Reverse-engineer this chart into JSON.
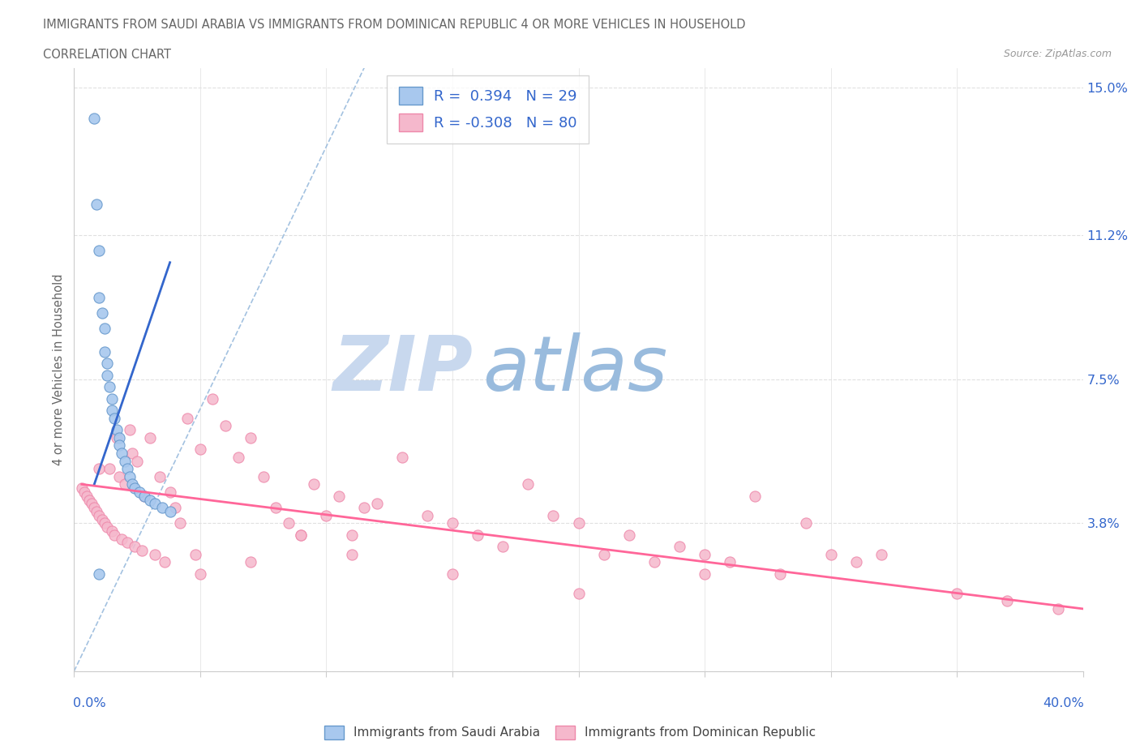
{
  "title_line1": "IMMIGRANTS FROM SAUDI ARABIA VS IMMIGRANTS FROM DOMINICAN REPUBLIC 4 OR MORE VEHICLES IN HOUSEHOLD",
  "title_line2": "CORRELATION CHART",
  "source_text": "Source: ZipAtlas.com",
  "ylabel_label": "4 or more Vehicles in Household",
  "legend_blue_label": "Immigrants from Saudi Arabia",
  "legend_pink_label": "Immigrants from Dominican Republic",
  "R_blue": 0.394,
  "N_blue": 29,
  "R_pink": -0.308,
  "N_pink": 80,
  "color_blue_fill": "#A8C8EE",
  "color_pink_fill": "#F5B8CC",
  "color_blue_edge": "#6699CC",
  "color_pink_edge": "#EE88AA",
  "color_blue_line": "#3366CC",
  "color_pink_line": "#FF6699",
  "color_blue_text": "#3366CC",
  "color_ref_line": "#99BBDD",
  "watermark_main": "#C8D8EE",
  "watermark_sub": "#99BBDD",
  "xmin": 0.0,
  "xmax": 0.4,
  "ymin": 0.0,
  "ymax": 0.155,
  "yticks": [
    0.0,
    0.038,
    0.075,
    0.112,
    0.15
  ],
  "ytick_labels": [
    "",
    "3.8%",
    "7.5%",
    "11.2%",
    "15.0%"
  ],
  "xtick_vals": [
    0.0,
    0.05,
    0.1,
    0.15,
    0.2,
    0.25,
    0.3,
    0.35,
    0.4
  ],
  "saudi_x": [
    0.008,
    0.009,
    0.01,
    0.01,
    0.011,
    0.012,
    0.012,
    0.013,
    0.013,
    0.014,
    0.015,
    0.015,
    0.016,
    0.017,
    0.018,
    0.018,
    0.019,
    0.02,
    0.021,
    0.022,
    0.023,
    0.024,
    0.026,
    0.028,
    0.03,
    0.032,
    0.035,
    0.038,
    0.01
  ],
  "saudi_y": [
    0.142,
    0.12,
    0.108,
    0.096,
    0.092,
    0.088,
    0.082,
    0.079,
    0.076,
    0.073,
    0.07,
    0.067,
    0.065,
    0.062,
    0.06,
    0.058,
    0.056,
    0.054,
    0.052,
    0.05,
    0.048,
    0.047,
    0.046,
    0.045,
    0.044,
    0.043,
    0.042,
    0.041,
    0.025
  ],
  "dominican_x": [
    0.003,
    0.004,
    0.005,
    0.006,
    0.007,
    0.008,
    0.009,
    0.01,
    0.01,
    0.011,
    0.012,
    0.013,
    0.014,
    0.015,
    0.016,
    0.017,
    0.018,
    0.019,
    0.02,
    0.021,
    0.022,
    0.023,
    0.024,
    0.025,
    0.027,
    0.028,
    0.03,
    0.032,
    0.034,
    0.036,
    0.038,
    0.04,
    0.042,
    0.045,
    0.048,
    0.05,
    0.055,
    0.06,
    0.065,
    0.07,
    0.075,
    0.08,
    0.085,
    0.09,
    0.095,
    0.1,
    0.105,
    0.11,
    0.115,
    0.12,
    0.13,
    0.14,
    0.15,
    0.16,
    0.17,
    0.18,
    0.19,
    0.2,
    0.21,
    0.22,
    0.23,
    0.24,
    0.25,
    0.26,
    0.27,
    0.28,
    0.29,
    0.3,
    0.31,
    0.32,
    0.05,
    0.07,
    0.09,
    0.11,
    0.15,
    0.2,
    0.25,
    0.35,
    0.37,
    0.39
  ],
  "dominican_y": [
    0.047,
    0.046,
    0.045,
    0.044,
    0.043,
    0.042,
    0.041,
    0.04,
    0.052,
    0.039,
    0.038,
    0.037,
    0.052,
    0.036,
    0.035,
    0.06,
    0.05,
    0.034,
    0.048,
    0.033,
    0.062,
    0.056,
    0.032,
    0.054,
    0.031,
    0.045,
    0.06,
    0.03,
    0.05,
    0.028,
    0.046,
    0.042,
    0.038,
    0.065,
    0.03,
    0.057,
    0.07,
    0.063,
    0.055,
    0.06,
    0.05,
    0.042,
    0.038,
    0.035,
    0.048,
    0.04,
    0.045,
    0.035,
    0.042,
    0.043,
    0.055,
    0.04,
    0.038,
    0.035,
    0.032,
    0.048,
    0.04,
    0.038,
    0.03,
    0.035,
    0.028,
    0.032,
    0.03,
    0.028,
    0.045,
    0.025,
    0.038,
    0.03,
    0.028,
    0.03,
    0.025,
    0.028,
    0.035,
    0.03,
    0.025,
    0.02,
    0.025,
    0.02,
    0.018,
    0.016
  ],
  "blue_trend_x": [
    0.008,
    0.038
  ],
  "blue_trend_y": [
    0.048,
    0.105
  ],
  "pink_trend_x": [
    0.003,
    0.4
  ],
  "pink_trend_y": [
    0.048,
    0.016
  ],
  "ref_line_x": [
    0.0,
    0.115
  ],
  "ref_line_y": [
    0.0,
    0.155
  ]
}
